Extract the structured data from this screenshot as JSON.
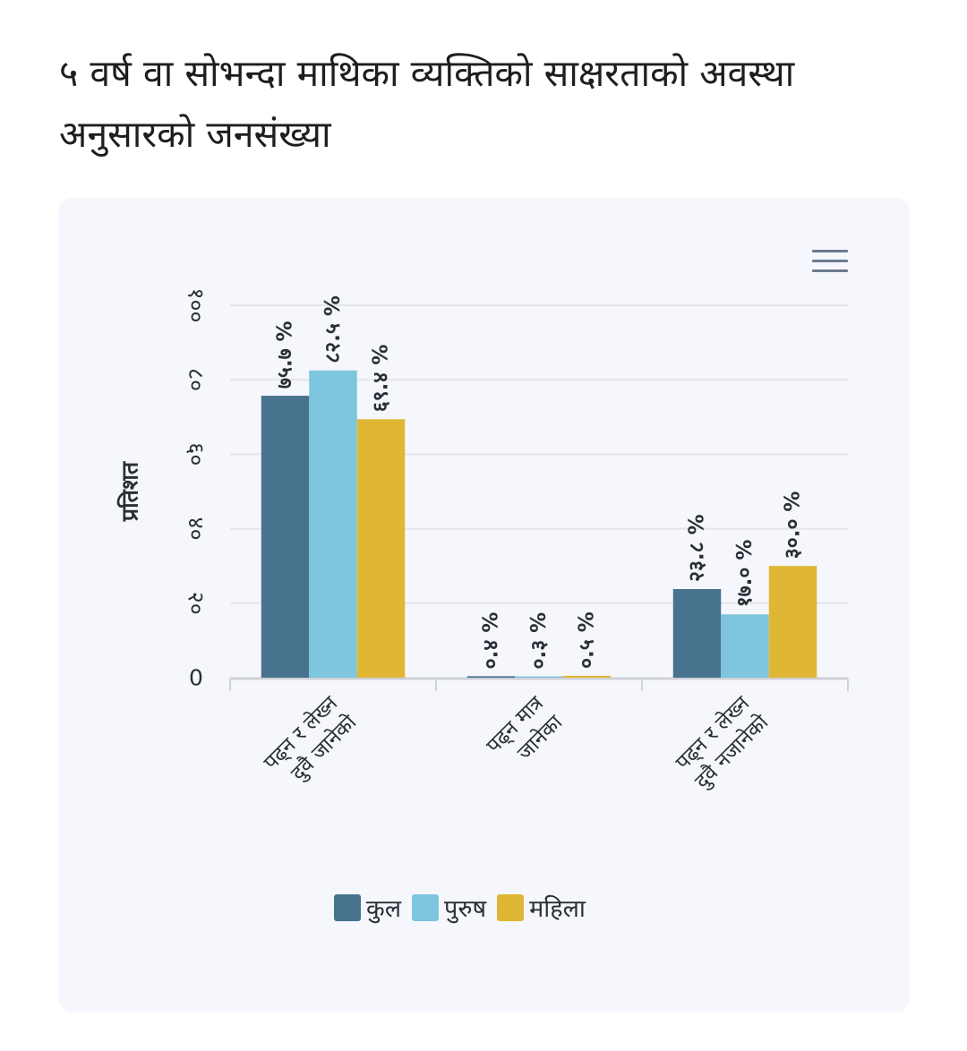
{
  "page": {
    "title": "५ वर्ष वा सोभन्दा माथिका व्यक्तिको साक्षरताको अवस्था अनुसारको जनसंख्या"
  },
  "chart_data": {
    "type": "bar",
    "categories": [
      "पढ्न र लेख्न दुवै जानेको",
      "पढ्न मात्र जानेका",
      "पढ्न र लेख्न दुवै नजानेको"
    ],
    "series": [
      {
        "name": "कुल",
        "values": [
          75.7,
          0.4,
          23.8
        ],
        "labels": [
          "७५.७ %",
          "०.४ %",
          "२३.८ %"
        ],
        "color": "#47738f"
      },
      {
        "name": "पुरुष",
        "values": [
          82.5,
          0.3,
          17.0
        ],
        "labels": [
          "८२.५ %",
          "०.३ %",
          "१७.० %"
        ],
        "color": "#7ec5df"
      },
      {
        "name": "महिला",
        "values": [
          69.4,
          0.5,
          30.0
        ],
        "labels": [
          "६९.४ %",
          "०.५ %",
          "३०.० %"
        ],
        "color": "#e0b735"
      }
    ],
    "ylabel": "प्रतिशत",
    "ylim": [
      0,
      100
    ],
    "yticks": [
      0,
      20,
      40,
      60,
      80,
      100
    ],
    "ytick_labels": [
      "0",
      "२०",
      "४०",
      "६०",
      "८०",
      "१००"
    ],
    "grid": true,
    "legend": "bottom-center"
  },
  "icons": {
    "menu": "hamburger-menu-icon"
  },
  "colors": {
    "card_background": "#f6f7fd",
    "grid": "#e3e5ea",
    "axis": "#cfd2d8",
    "text": "#2a2f36"
  }
}
